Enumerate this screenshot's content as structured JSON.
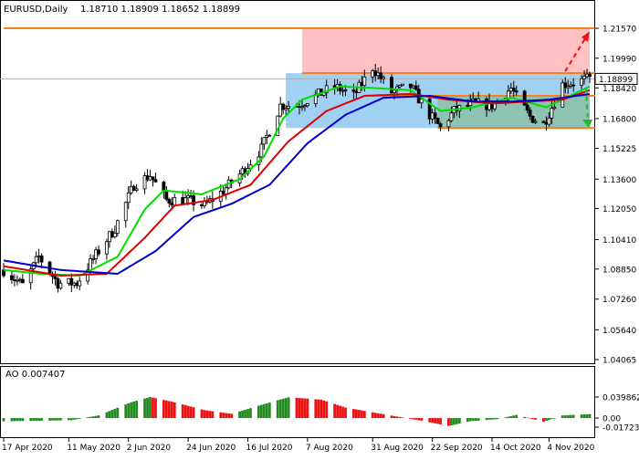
{
  "header": {
    "symbol": "EURUSD,Daily",
    "ohlc": "1.18710 1.18909 1.18652 1.18899"
  },
  "indicator": {
    "label": "AO 0.007407"
  },
  "colors": {
    "bull_bar": "#228B22",
    "bear_bar": "#EE1111",
    "ma_fast": "#00DD00",
    "ma_mid": "#DD0000",
    "ma_slow": "#0000CC",
    "resistance_zone": "#FFB6B6",
    "range_zone": "#8FC8F0",
    "support_zone": "#8BBFA8",
    "level_line": "#F08020",
    "arrow_up": "#EE1111",
    "arrow_down": "#22BB22"
  },
  "chart_data": [
    {
      "type": "candlestick",
      "title": "EURUSD,Daily",
      "y_ticks": [
        "1.21570",
        "1.19990",
        "1.18420",
        "1.16800",
        "1.15225",
        "1.13600",
        "1.12050",
        "1.10410",
        "1.08850",
        "1.07260",
        "1.05640",
        "1.04065"
      ],
      "ylim": [
        1.04065,
        1.2157
      ],
      "last_price": "1.18899",
      "x_ticks": [
        "17 Apr 2020",
        "11 May 2020",
        "2 Jun 2020",
        "24 Jun 2020",
        "16 Jul 2020",
        "7 Aug 2020",
        "31 Aug 2020",
        "22 Sep 2020",
        "14 Oct 2020",
        "4 Nov 2020"
      ],
      "x_range": [
        "2020-04-17",
        "2020-11-19"
      ],
      "price_path": [
        [
          "2020-04-17",
          1.088
        ],
        [
          "2020-04-24",
          1.08
        ],
        [
          "2020-04-30",
          1.095
        ],
        [
          "2020-05-07",
          1.081
        ],
        [
          "2020-05-14",
          1.081
        ],
        [
          "2020-05-21",
          1.096
        ],
        [
          "2020-05-28",
          1.11
        ],
        [
          "2020-06-04",
          1.133
        ],
        [
          "2020-06-10",
          1.138
        ],
        [
          "2020-06-16",
          1.125
        ],
        [
          "2020-06-24",
          1.125
        ],
        [
          "2020-06-30",
          1.122
        ],
        [
          "2020-07-07",
          1.13
        ],
        [
          "2020-07-14",
          1.14
        ],
        [
          "2020-07-21",
          1.152
        ],
        [
          "2020-07-28",
          1.175
        ],
        [
          "2020-08-03",
          1.175
        ],
        [
          "2020-08-10",
          1.18
        ],
        [
          "2020-08-17",
          1.185
        ],
        [
          "2020-08-24",
          1.18
        ],
        [
          "2020-08-31",
          1.195
        ],
        [
          "2020-09-07",
          1.182
        ],
        [
          "2020-09-14",
          1.185
        ],
        [
          "2020-09-21",
          1.17
        ],
        [
          "2020-09-25",
          1.163
        ],
        [
          "2020-09-30",
          1.172
        ],
        [
          "2020-10-07",
          1.176
        ],
        [
          "2020-10-14",
          1.175
        ],
        [
          "2020-10-21",
          1.184
        ],
        [
          "2020-10-28",
          1.169
        ],
        [
          "2020-11-02",
          1.165
        ],
        [
          "2020-11-09",
          1.186
        ],
        [
          "2020-11-16",
          1.188
        ],
        [
          "2020-11-19",
          1.189
        ]
      ],
      "moving_averages": [
        {
          "name": "fast",
          "color": "#00DD00",
          "points": [
            [
              "2020-04-17",
              1.088
            ],
            [
              "2020-05-01",
              1.086
            ],
            [
              "2020-05-15",
              1.085
            ],
            [
              "2020-05-29",
              1.095
            ],
            [
              "2020-06-08",
              1.12
            ],
            [
              "2020-06-15",
              1.13
            ],
            [
              "2020-06-29",
              1.128
            ],
            [
              "2020-07-13",
              1.136
            ],
            [
              "2020-07-22",
              1.148
            ],
            [
              "2020-07-29",
              1.168
            ],
            [
              "2020-08-05",
              1.178
            ],
            [
              "2020-08-19",
              1.185
            ],
            [
              "2020-09-02",
              1.184
            ],
            [
              "2020-09-14",
              1.183
            ],
            [
              "2020-09-25",
              1.172
            ],
            [
              "2020-10-07",
              1.174
            ],
            [
              "2020-10-21",
              1.179
            ],
            [
              "2020-11-03",
              1.174
            ],
            [
              "2020-11-19",
              1.185
            ]
          ]
        },
        {
          "name": "mid",
          "color": "#DD0000",
          "points": [
            [
              "2020-04-17",
              1.09
            ],
            [
              "2020-05-08",
              1.085
            ],
            [
              "2020-05-25",
              1.086
            ],
            [
              "2020-06-08",
              1.105
            ],
            [
              "2020-06-19",
              1.122
            ],
            [
              "2020-07-03",
              1.125
            ],
            [
              "2020-07-17",
              1.133
            ],
            [
              "2020-07-31",
              1.156
            ],
            [
              "2020-08-14",
              1.172
            ],
            [
              "2020-08-28",
              1.18
            ],
            [
              "2020-09-14",
              1.181
            ],
            [
              "2020-09-28",
              1.178
            ],
            [
              "2020-10-14",
              1.176
            ],
            [
              "2020-10-28",
              1.177
            ],
            [
              "2020-11-09",
              1.178
            ],
            [
              "2020-11-19",
              1.183
            ]
          ]
        },
        {
          "name": "slow",
          "color": "#0000CC",
          "points": [
            [
              "2020-04-17",
              1.093
            ],
            [
              "2020-05-08",
              1.088
            ],
            [
              "2020-05-29",
              1.086
            ],
            [
              "2020-06-12",
              1.098
            ],
            [
              "2020-06-26",
              1.116
            ],
            [
              "2020-07-10",
              1.123
            ],
            [
              "2020-07-24",
              1.133
            ],
            [
              "2020-08-07",
              1.155
            ],
            [
              "2020-08-21",
              1.17
            ],
            [
              "2020-09-04",
              1.179
            ],
            [
              "2020-09-21",
              1.18
            ],
            [
              "2020-10-07",
              1.177
            ],
            [
              "2020-10-21",
              1.177
            ],
            [
              "2020-11-04",
              1.178
            ],
            [
              "2020-11-19",
              1.181
            ]
          ]
        }
      ],
      "zones": [
        {
          "name": "resistance",
          "from": "2020-08-05",
          "to": "2020-11-19",
          "y": [
            1.192,
            1.2157
          ]
        },
        {
          "name": "range",
          "from": "2020-07-30",
          "to": "2020-11-19",
          "y": [
            1.163,
            1.192
          ]
        },
        {
          "name": "support",
          "from": "2020-09-24",
          "to": "2020-11-19",
          "y": [
            1.163,
            1.18
          ]
        }
      ],
      "levels": [
        {
          "value": 1.2157,
          "from": "2020-04-17",
          "to": "2020-11-19"
        },
        {
          "value": 1.192,
          "from": "2020-08-05",
          "to": "2020-11-19"
        },
        {
          "value": 1.18,
          "from": "2020-08-31",
          "to": "2020-11-19"
        },
        {
          "value": 1.163,
          "from": "2020-09-24",
          "to": "2020-11-19"
        }
      ]
    },
    {
      "type": "bar",
      "title": "AO 0.007407",
      "y_ticks": [
        "0.039862",
        "0.00",
        "-0.017231"
      ],
      "ylim": [
        -0.0172,
        0.0399
      ],
      "value_path": [
        [
          "2020-04-17",
          -0.006
        ],
        [
          "2020-05-01",
          -0.005
        ],
        [
          "2020-05-12",
          -0.004
        ],
        [
          "2020-05-22",
          0.005
        ],
        [
          "2020-06-03",
          0.03
        ],
        [
          "2020-06-10",
          0.0399
        ],
        [
          "2020-06-19",
          0.03
        ],
        [
          "2020-06-30",
          0.015
        ],
        [
          "2020-07-10",
          0.008
        ],
        [
          "2020-07-21",
          0.025
        ],
        [
          "2020-07-31",
          0.0395
        ],
        [
          "2020-08-12",
          0.035
        ],
        [
          "2020-08-21",
          0.02
        ],
        [
          "2020-09-01",
          0.01
        ],
        [
          "2020-09-10",
          0.002
        ],
        [
          "2020-09-18",
          -0.005
        ],
        [
          "2020-09-28",
          -0.015
        ],
        [
          "2020-10-06",
          -0.006
        ],
        [
          "2020-10-16",
          -0.002
        ],
        [
          "2020-10-23",
          0.006
        ],
        [
          "2020-11-02",
          -0.007
        ],
        [
          "2020-11-09",
          0.005
        ],
        [
          "2020-11-19",
          0.0074
        ]
      ]
    }
  ]
}
